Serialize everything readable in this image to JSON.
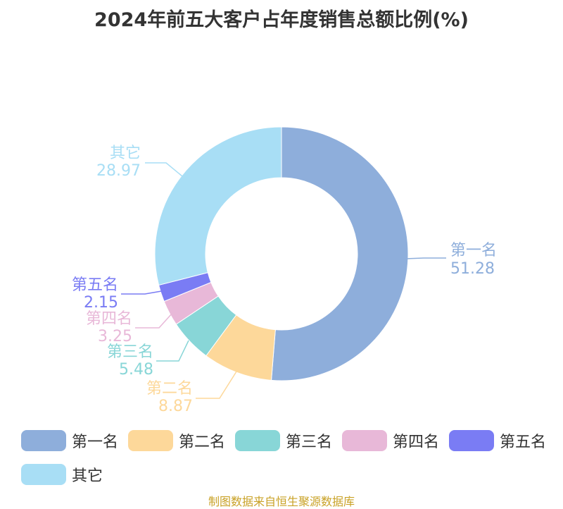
{
  "chart_data": {
    "type": "pie",
    "variant": "donut",
    "title": "2024年前五大客户占年度销售总额比例(%)",
    "categories": [
      "第一名",
      "第二名",
      "第三名",
      "第四名",
      "第五名",
      "其它"
    ],
    "values": [
      51.28,
      8.87,
      5.48,
      3.25,
      2.15,
      28.97
    ],
    "colors": [
      "#8eaedb",
      "#fdd89a",
      "#88d6d7",
      "#e8b8d8",
      "#7a7cf4",
      "#a8def5"
    ],
    "legend_position": "bottom"
  },
  "footer": {
    "source": "制图数据来自恒生聚源数据库"
  }
}
